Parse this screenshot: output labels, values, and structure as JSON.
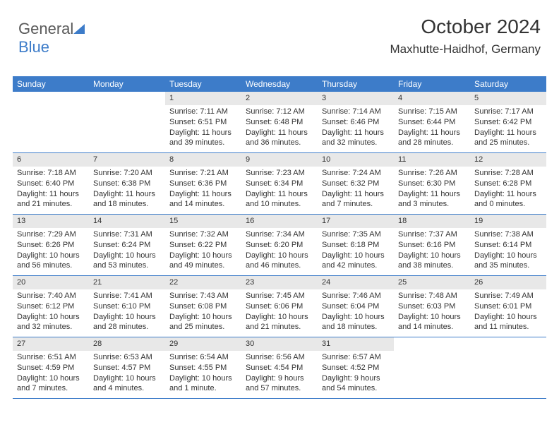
{
  "logo": {
    "text_a": "General",
    "text_b": "Blue",
    "icon_color": "#3d7cc9",
    "text_color_a": "#5a5a5a",
    "text_color_b": "#3d7cc9"
  },
  "header": {
    "title": "October 2024",
    "location": "Maxhutte-Haidhof, Germany"
  },
  "colors": {
    "header_bar": "#3d7cc9",
    "daynum_bg": "#e8e8e8",
    "text": "#333333",
    "rule": "#3d7cc9",
    "bg": "#ffffff"
  },
  "day_names": [
    "Sunday",
    "Monday",
    "Tuesday",
    "Wednesday",
    "Thursday",
    "Friday",
    "Saturday"
  ],
  "weeks": [
    [
      null,
      null,
      {
        "n": "1",
        "sr": "7:11 AM",
        "ss": "6:51 PM",
        "dl": "11 hours and 39 minutes."
      },
      {
        "n": "2",
        "sr": "7:12 AM",
        "ss": "6:48 PM",
        "dl": "11 hours and 36 minutes."
      },
      {
        "n": "3",
        "sr": "7:14 AM",
        "ss": "6:46 PM",
        "dl": "11 hours and 32 minutes."
      },
      {
        "n": "4",
        "sr": "7:15 AM",
        "ss": "6:44 PM",
        "dl": "11 hours and 28 minutes."
      },
      {
        "n": "5",
        "sr": "7:17 AM",
        "ss": "6:42 PM",
        "dl": "11 hours and 25 minutes."
      }
    ],
    [
      {
        "n": "6",
        "sr": "7:18 AM",
        "ss": "6:40 PM",
        "dl": "11 hours and 21 minutes."
      },
      {
        "n": "7",
        "sr": "7:20 AM",
        "ss": "6:38 PM",
        "dl": "11 hours and 18 minutes."
      },
      {
        "n": "8",
        "sr": "7:21 AM",
        "ss": "6:36 PM",
        "dl": "11 hours and 14 minutes."
      },
      {
        "n": "9",
        "sr": "7:23 AM",
        "ss": "6:34 PM",
        "dl": "11 hours and 10 minutes."
      },
      {
        "n": "10",
        "sr": "7:24 AM",
        "ss": "6:32 PM",
        "dl": "11 hours and 7 minutes."
      },
      {
        "n": "11",
        "sr": "7:26 AM",
        "ss": "6:30 PM",
        "dl": "11 hours and 3 minutes."
      },
      {
        "n": "12",
        "sr": "7:28 AM",
        "ss": "6:28 PM",
        "dl": "11 hours and 0 minutes."
      }
    ],
    [
      {
        "n": "13",
        "sr": "7:29 AM",
        "ss": "6:26 PM",
        "dl": "10 hours and 56 minutes."
      },
      {
        "n": "14",
        "sr": "7:31 AM",
        "ss": "6:24 PM",
        "dl": "10 hours and 53 minutes."
      },
      {
        "n": "15",
        "sr": "7:32 AM",
        "ss": "6:22 PM",
        "dl": "10 hours and 49 minutes."
      },
      {
        "n": "16",
        "sr": "7:34 AM",
        "ss": "6:20 PM",
        "dl": "10 hours and 46 minutes."
      },
      {
        "n": "17",
        "sr": "7:35 AM",
        "ss": "6:18 PM",
        "dl": "10 hours and 42 minutes."
      },
      {
        "n": "18",
        "sr": "7:37 AM",
        "ss": "6:16 PM",
        "dl": "10 hours and 38 minutes."
      },
      {
        "n": "19",
        "sr": "7:38 AM",
        "ss": "6:14 PM",
        "dl": "10 hours and 35 minutes."
      }
    ],
    [
      {
        "n": "20",
        "sr": "7:40 AM",
        "ss": "6:12 PM",
        "dl": "10 hours and 32 minutes."
      },
      {
        "n": "21",
        "sr": "7:41 AM",
        "ss": "6:10 PM",
        "dl": "10 hours and 28 minutes."
      },
      {
        "n": "22",
        "sr": "7:43 AM",
        "ss": "6:08 PM",
        "dl": "10 hours and 25 minutes."
      },
      {
        "n": "23",
        "sr": "7:45 AM",
        "ss": "6:06 PM",
        "dl": "10 hours and 21 minutes."
      },
      {
        "n": "24",
        "sr": "7:46 AM",
        "ss": "6:04 PM",
        "dl": "10 hours and 18 minutes."
      },
      {
        "n": "25",
        "sr": "7:48 AM",
        "ss": "6:03 PM",
        "dl": "10 hours and 14 minutes."
      },
      {
        "n": "26",
        "sr": "7:49 AM",
        "ss": "6:01 PM",
        "dl": "10 hours and 11 minutes."
      }
    ],
    [
      {
        "n": "27",
        "sr": "6:51 AM",
        "ss": "4:59 PM",
        "dl": "10 hours and 7 minutes."
      },
      {
        "n": "28",
        "sr": "6:53 AM",
        "ss": "4:57 PM",
        "dl": "10 hours and 4 minutes."
      },
      {
        "n": "29",
        "sr": "6:54 AM",
        "ss": "4:55 PM",
        "dl": "10 hours and 1 minute."
      },
      {
        "n": "30",
        "sr": "6:56 AM",
        "ss": "4:54 PM",
        "dl": "9 hours and 57 minutes."
      },
      {
        "n": "31",
        "sr": "6:57 AM",
        "ss": "4:52 PM",
        "dl": "9 hours and 54 minutes."
      },
      null,
      null
    ]
  ],
  "labels": {
    "sunrise": "Sunrise:",
    "sunset": "Sunset:",
    "daylight": "Daylight:"
  }
}
